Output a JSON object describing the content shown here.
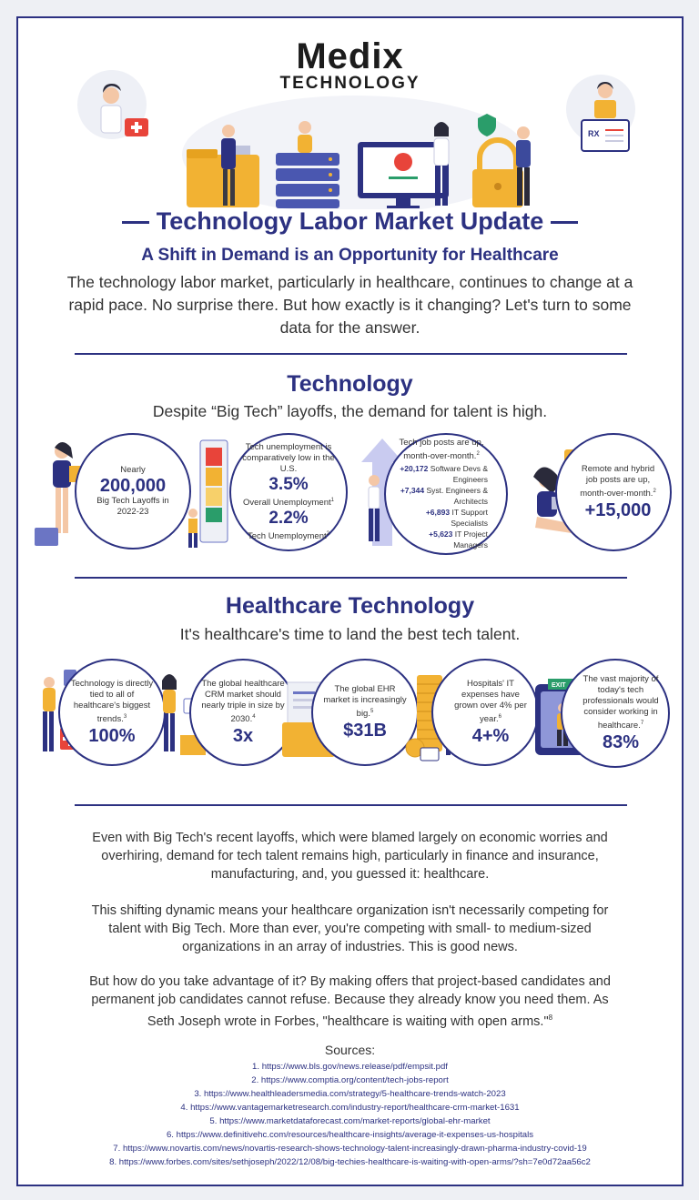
{
  "brand": {
    "name": "Medix",
    "tagline": "TECHNOLOGY"
  },
  "header": {
    "title": "Technology Labor Market Update",
    "subtitle": "A Shift in Demand is an Opportunity for Healthcare",
    "intro": "The technology labor market, particularly in healthcare, continues to change at a rapid pace. No surprise there. But how exactly is it changing? Let's turn to some data for the answer."
  },
  "illustration": {
    "rx_label": "RX"
  },
  "technology": {
    "title": "Technology",
    "subtitle": "Despite “Big Tech” layoffs, the demand for talent is high.",
    "stat1": {
      "pre": "Nearly",
      "value": "200,000",
      "post": "Big Tech Layoffs in 2022-23"
    },
    "stat2": {
      "pre": "Tech unemployment is comparatively low in the U.S.",
      "value1": "3.5%",
      "label1": "Overall Unemployment",
      "ref1": "1",
      "value2": "2.2%",
      "label2": "Tech Unemployment",
      "ref2": "2"
    },
    "stat3": {
      "pre": "Tech job posts are up, month-over-month.",
      "ref": "2",
      "items": [
        {
          "num": "+20,172",
          "label": "Software Devs & Engineers"
        },
        {
          "num": "+7,344",
          "label": "Syst. Engineers & Architects"
        },
        {
          "num": "+6,893",
          "label": "IT Support Specialists"
        },
        {
          "num": "+5,623",
          "label": "IT Project Managers"
        }
      ]
    },
    "stat4": {
      "pre": "Remote and hybrid job posts are up, month-over-month.",
      "ref": "2",
      "value": "+15,000"
    }
  },
  "healthcare": {
    "title": "Healthcare Technology",
    "subtitle": "It's healthcare's time to land the best tech talent.",
    "stats": [
      {
        "text": "Technology is directly tied to all of healthcare's biggest trends.",
        "ref": "3",
        "value": "100%"
      },
      {
        "text": "The global healthcare CRM market should nearly triple in size by 2030.",
        "ref": "4",
        "value": "3x"
      },
      {
        "text": "The global EHR market is increasingly big.",
        "ref": "5",
        "value": "$31B"
      },
      {
        "text": "Hospitals' IT expenses have grown over 4% per year.",
        "ref": "6",
        "value": "4+%"
      },
      {
        "text": "The vast majority of today's tech professionals would consider working in healthcare.",
        "ref": "7",
        "value": "83%"
      }
    ],
    "exit_sign": "EXIT"
  },
  "body": {
    "p1": "Even with Big Tech's recent layoffs, which were blamed largely on economic worries and overhiring, demand for tech talent remains high, particularly in finance and insurance, manufacturing, and, you guessed it: healthcare.",
    "p2": "This shifting dynamic means your healthcare organization isn't necessarily competing for talent with Big Tech. More than ever, you're competing with small- to medium-sized organizations in an array of industries. This is good news.",
    "p3": "But how do you take advantage of it? By making offers that project-based candidates and permanent job candidates cannot refuse. Because they already know you need them. As Seth Joseph wrote in Forbes, \"healthcare is waiting with open arms.\"",
    "p3_ref": "8"
  },
  "sources": {
    "title": "Sources:",
    "items": [
      "1. https://www.bls.gov/news.release/pdf/empsit.pdf",
      "2. https://www.comptia.org/content/tech-jobs-report",
      "3. https://www.healthleadersmedia.com/strategy/5-healthcare-trends-watch-2023",
      "4. https://www.vantagemarketresearch.com/industry-report/healthcare-crm-market-1631",
      "5. https://www.marketdataforecast.com/market-reports/global-ehr-market",
      "6. https://www.definitivehc.com/resources/healthcare-insights/average-it-expenses-us-hospitals",
      "7. https://www.novartis.com/news/novartis-research-shows-technology-talent-increasingly-drawn-pharma-industry-covid-19",
      "8. https://www.forbes.com/sites/sethjoseph/2022/12/08/big-techies-healthcare-is-waiting-with-open-arms/?sh=7e0d72aa56c2"
    ]
  },
  "colors": {
    "navy": "#2c3181",
    "gold": "#f2b233",
    "red": "#e8443a"
  }
}
